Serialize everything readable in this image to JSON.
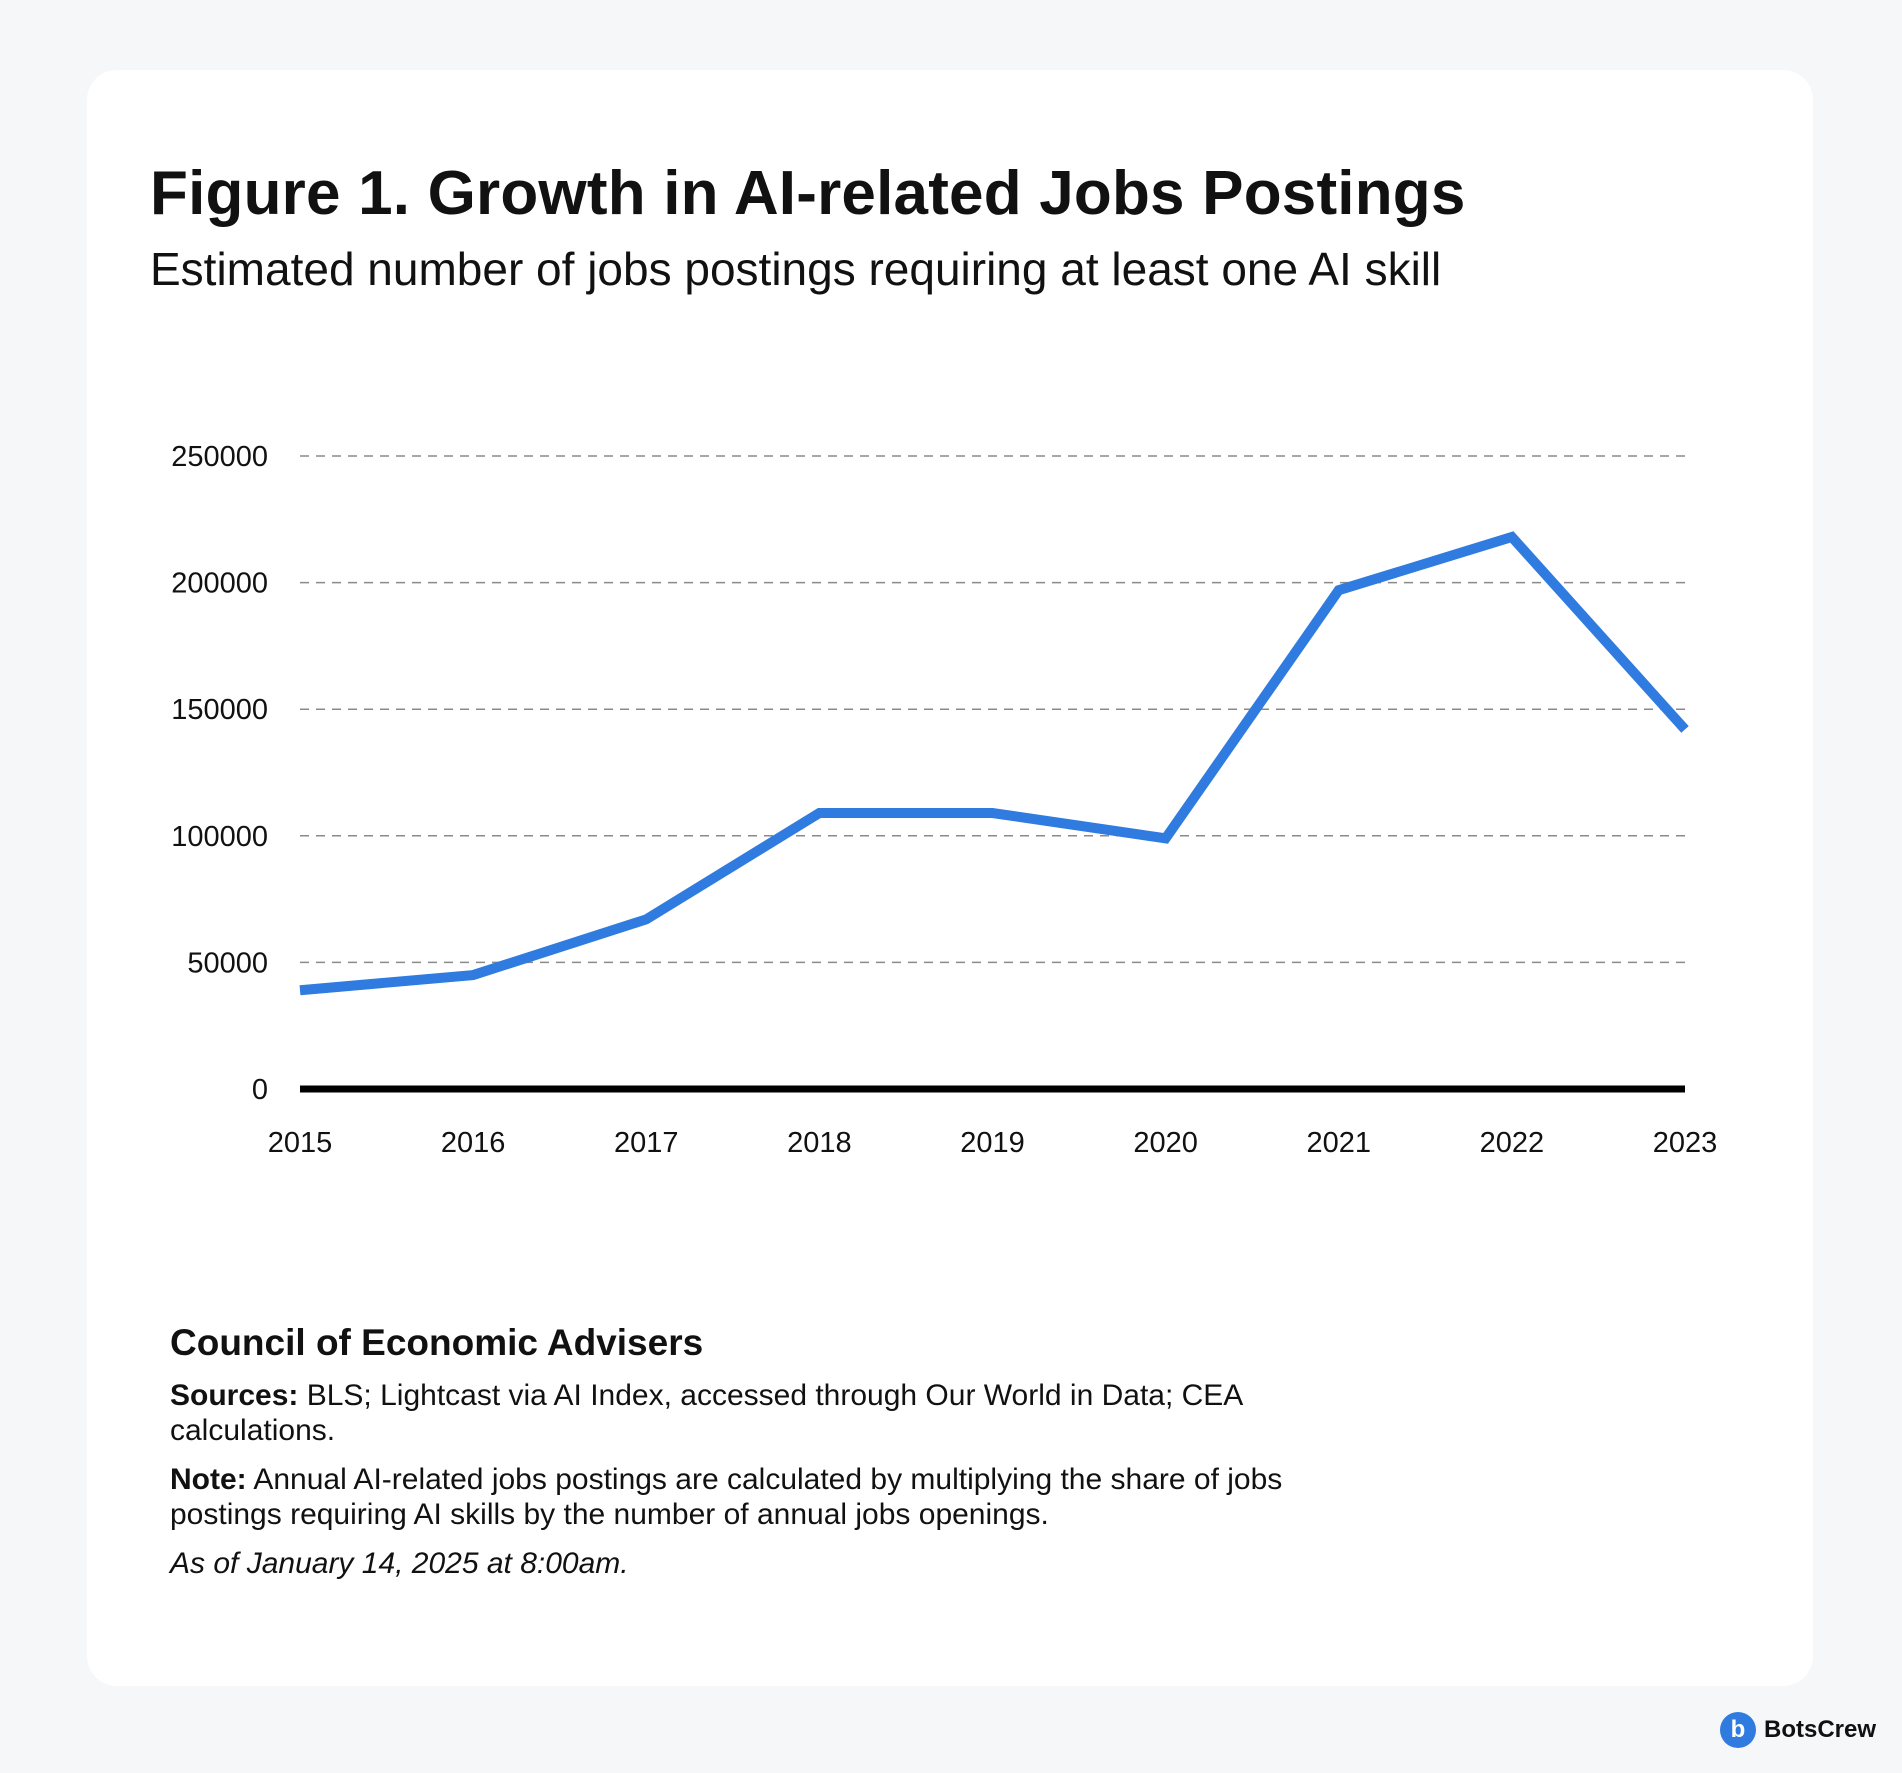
{
  "chart_data": {
    "type": "line",
    "title": "Figure 1. Growth in AI-related Jobs Postings",
    "subtitle": "Estimated number of jobs postings requiring at least one AI skill",
    "xlabel": "",
    "ylabel": "",
    "categories": [
      "2015",
      "2016",
      "2017",
      "2018",
      "2019",
      "2020",
      "2021",
      "2022",
      "2023"
    ],
    "series": [
      {
        "name": "AI-related jobs postings",
        "values": [
          39000,
          45000,
          67000,
          109000,
          109000,
          99000,
          197000,
          218000,
          142000
        ]
      }
    ],
    "ylim": [
      0,
      250000
    ],
    "yticks": [
      "0",
      "50000",
      "100000",
      "150000",
      "200000",
      "250000"
    ],
    "grid": true,
    "line_color": "#2f7be0"
  },
  "footer": {
    "org": "Council of Economic Advisers",
    "sources_label": "Sources:",
    "sources_text": " BLS; Lightcast via AI Index, accessed through Our World in Data; CEA calculations.",
    "note_label": "Note:",
    "note_text": " Annual AI-related jobs postings are calculated by multiplying the share of jobs postings requiring AI skills by the number of annual jobs openings.",
    "as_of": "As of January 14, 2025 at 8:00am."
  },
  "brand": {
    "logo_letter": "b",
    "name": "BotsCrew",
    "color": "#2f7be0"
  }
}
